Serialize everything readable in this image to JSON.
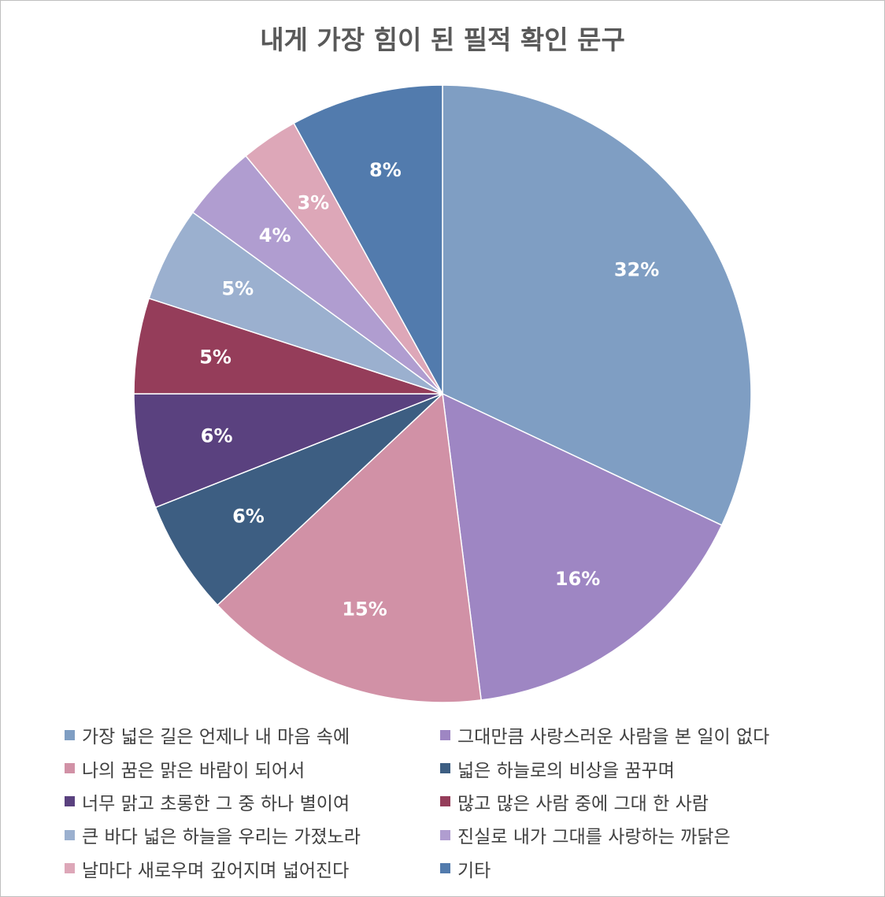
{
  "chart_data": {
    "type": "pie",
    "title": "내게 가장 힘이 된 필적 확인 문구",
    "slices": [
      {
        "label": "가장 넓은 길은 언제나 내 마음 속에",
        "value": 32,
        "display": "32%",
        "color": "#7F9EC3"
      },
      {
        "label": "그대만큼 사랑스러운 사람을 본 일이 없다",
        "value": 16,
        "display": "16%",
        "color": "#9E86C3"
      },
      {
        "label": "나의 꿈은 맑은 바람이 되어서",
        "value": 15,
        "display": "15%",
        "color": "#D191A6"
      },
      {
        "label": "넓은 하늘로의 비상을 꿈꾸며",
        "value": 6,
        "display": "6%",
        "color": "#3D5E82"
      },
      {
        "label": "너무 맑고 초롱한 그 중 하나 별이여",
        "value": 6,
        "display": "6%",
        "color": "#5A417F"
      },
      {
        "label": "많고 많은 사람 중에 그대 한 사람",
        "value": 5,
        "display": "5%",
        "color": "#953D5A"
      },
      {
        "label": "큰 바다 넓은 하늘을 우리는 가졌노라",
        "value": 5,
        "display": "5%",
        "color": "#9BB0CF"
      },
      {
        "label": "진실로 내가 그대를 사랑하는 까닭은",
        "value": 4,
        "display": "4%",
        "color": "#B09DD0"
      },
      {
        "label": "날마다 새로우며 깊어지며 넓어진다",
        "value": 3,
        "display": "3%",
        "color": "#DDA7B8"
      },
      {
        "label": "기타",
        "value": 8,
        "display": "8%",
        "color": "#527BAD"
      }
    ],
    "legend_position": "bottom",
    "label_color": "#ffffff"
  }
}
